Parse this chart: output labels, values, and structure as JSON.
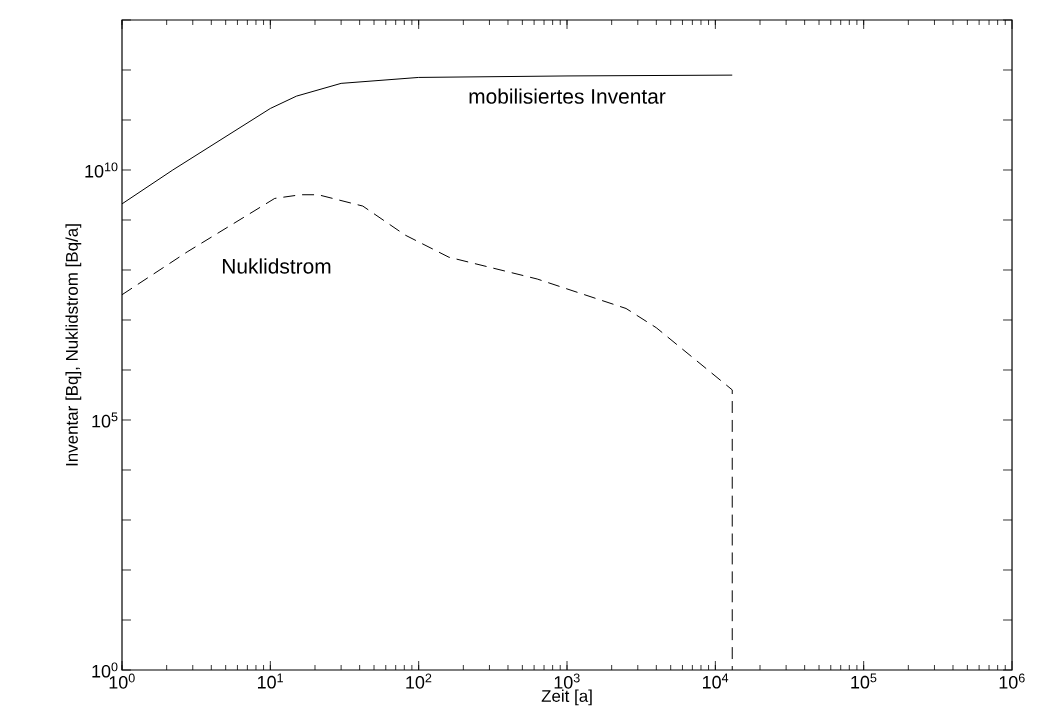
{
  "chart_data": {
    "type": "line",
    "xlabel": "Zeit [a]",
    "ylabel": "Inventar [Bq], Nuklidstrom [Bq/a]",
    "log": "xy",
    "xlim": [
      1,
      1000000
    ],
    "ylim": [
      1,
      10000000000000
    ],
    "xticks": [
      {
        "value": 1,
        "label": "10$^{0}$"
      },
      {
        "value": 10,
        "label": "10$^{1}$"
      },
      {
        "value": 100,
        "label": "10$^{2}$"
      },
      {
        "value": 1000,
        "label": "10$^{3}$"
      },
      {
        "value": 10000,
        "label": "10$^{4}$"
      },
      {
        "value": 100000,
        "label": "10$^{5}$"
      },
      {
        "value": 1000000,
        "label": "10$^{6}$"
      }
    ],
    "yticks": [
      {
        "value": 1,
        "label": "10$^{0}$"
      },
      {
        "value": 10,
        "label": null
      },
      {
        "value": 100,
        "label": null
      },
      {
        "value": 1000,
        "label": null
      },
      {
        "value": 10000,
        "label": null
      },
      {
        "value": 100000,
        "label": "10$^{5}$"
      },
      {
        "value": 1000000,
        "label": null
      },
      {
        "value": 10000000,
        "label": null
      },
      {
        "value": 100000000,
        "label": null
      },
      {
        "value": 1000000000,
        "label": null
      },
      {
        "value": 10000000000,
        "label": "10$^{10}$"
      },
      {
        "value": 100000000000,
        "label": null
      },
      {
        "value": 1000000000000,
        "label": null
      },
      {
        "value": 10000000000000,
        "label": null
      }
    ],
    "legend": false,
    "marker": "none",
    "series": [
      {
        "name": "mobilisiertes Inventar",
        "color": "#000000",
        "line_style": "solid",
        "x": [
          1,
          2.2,
          10,
          15,
          30,
          100,
          1000,
          13000
        ],
        "values": [
          2100000000,
          10000000000,
          170000000000,
          300000000000,
          540000000000,
          710000000000,
          760000000000,
          790000000000
        ]
      },
      {
        "name": "Nuklidstrom",
        "color": "#000000",
        "line_style": "dashed",
        "x": [
          1,
          2.75,
          10.7,
          16,
          21,
          42,
          81,
          160,
          630,
          2500,
          4000,
          8000,
          13000,
          13000
        ],
        "values": [
          32000000,
          230000000,
          2700000000,
          3200000000,
          3200000000,
          1900000000,
          500000000,
          180000000,
          66000000,
          17000000,
          7000000,
          1300000,
          400000,
          1
        ]
      }
    ]
  }
}
